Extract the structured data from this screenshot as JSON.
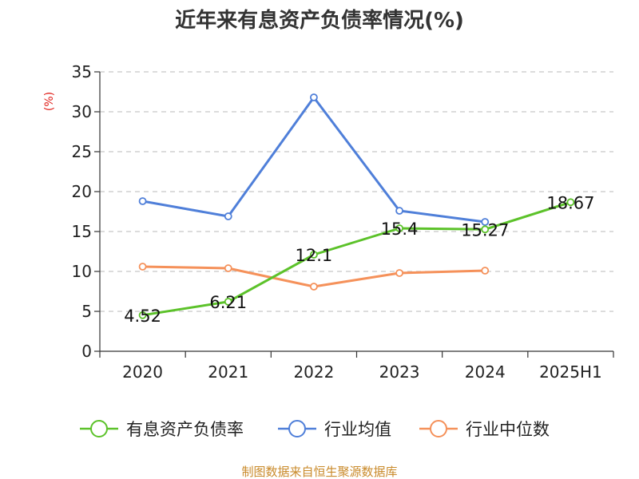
{
  "chart_data": {
    "type": "line",
    "title": "近年来有息资产负债率情况(%)",
    "ylabel": "(%)",
    "xlabel": "",
    "categories": [
      "2020",
      "2021",
      "2022",
      "2023",
      "2024",
      "2025H1"
    ],
    "ylim": [
      0,
      35
    ],
    "yticks": [
      0,
      5,
      10,
      15,
      20,
      25,
      30,
      35
    ],
    "grid": true,
    "legend_position": "bottom",
    "series": [
      {
        "name": "有息资产负债率",
        "color": "#5cc22a",
        "values": [
          4.52,
          6.21,
          12.1,
          15.4,
          15.27,
          18.67
        ],
        "labels": [
          "4.52",
          "6.21",
          "12.1",
          "15.4",
          "15.27",
          "18.67"
        ]
      },
      {
        "name": "行业均值",
        "color": "#4f7fd9",
        "values": [
          18.8,
          16.9,
          31.8,
          17.6,
          16.2,
          null
        ]
      },
      {
        "name": "行业中位数",
        "color": "#f5915a",
        "values": [
          10.6,
          10.4,
          8.1,
          9.8,
          10.1,
          null
        ]
      }
    ]
  },
  "source": "制图数据来自恒生聚源数据库"
}
